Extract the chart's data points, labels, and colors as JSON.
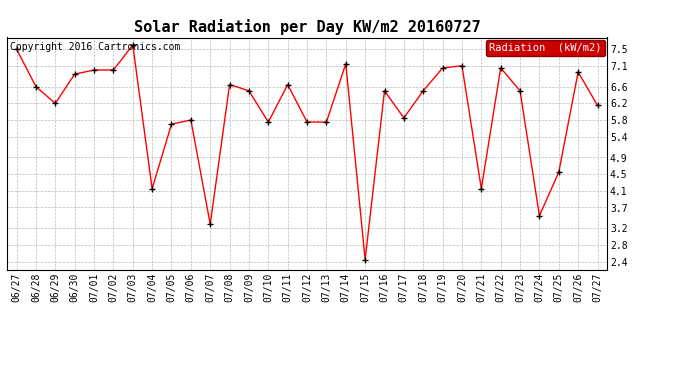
{
  "title": "Solar Radiation per Day KW/m2 20160727",
  "copyright": "Copyright 2016 Cartronics.com",
  "legend_label": "Radiation  (kW/m2)",
  "dates": [
    "06/27",
    "06/28",
    "06/29",
    "06/30",
    "07/01",
    "07/02",
    "07/03",
    "07/04",
    "07/05",
    "07/06",
    "07/07",
    "07/08",
    "07/09",
    "07/10",
    "07/11",
    "07/12",
    "07/13",
    "07/14",
    "07/15",
    "07/16",
    "07/17",
    "07/18",
    "07/19",
    "07/20",
    "07/21",
    "07/22",
    "07/23",
    "07/24",
    "07/25",
    "07/26",
    "07/27"
  ],
  "values": [
    7.5,
    6.6,
    6.2,
    6.9,
    7.0,
    7.0,
    7.6,
    4.15,
    5.7,
    5.8,
    3.3,
    6.65,
    6.5,
    5.75,
    6.65,
    5.75,
    5.75,
    7.15,
    2.45,
    6.5,
    5.85,
    6.5,
    7.05,
    7.1,
    4.15,
    7.05,
    6.5,
    3.5,
    4.55,
    6.95,
    6.15
  ],
  "line_color": "#ff0000",
  "marker_color": "#000000",
  "background_color": "#ffffff",
  "grid_color": "#aaaaaa",
  "legend_bg": "#cc0000",
  "legend_text_color": "#ffffff",
  "ylim": [
    2.2,
    7.78
  ],
  "yticks": [
    2.4,
    2.8,
    3.2,
    3.7,
    4.1,
    4.5,
    4.9,
    5.4,
    5.8,
    6.2,
    6.6,
    7.1,
    7.5
  ],
  "title_fontsize": 11,
  "copyright_fontsize": 7,
  "tick_fontsize": 7,
  "legend_fontsize": 7.5
}
